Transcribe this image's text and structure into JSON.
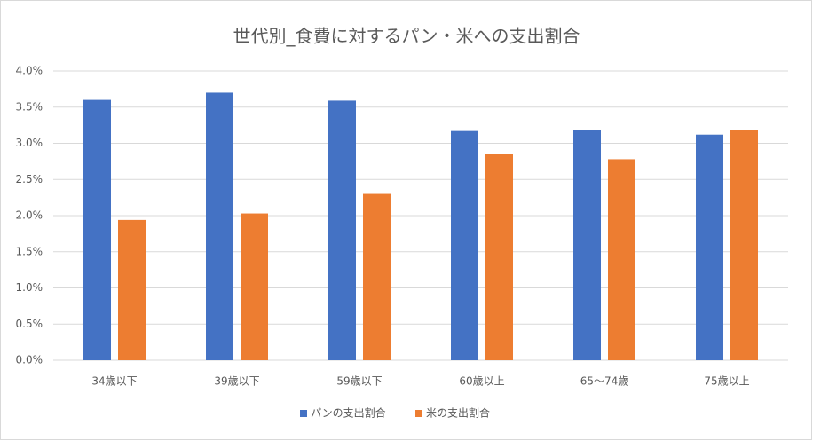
{
  "chart_data": {
    "type": "bar",
    "title": "世代別_食費に対するパン・米への支出割合",
    "categories": [
      "34歳以下",
      "39歳以下",
      "59歳以下",
      "60歳以上",
      "65〜74歳",
      "75歳以上"
    ],
    "series": [
      {
        "name": "パンの支出割合",
        "color": "#4472c4",
        "values": [
          3.6,
          3.7,
          3.59,
          3.17,
          3.18,
          3.12
        ]
      },
      {
        "name": "米の支出割合",
        "color": "#ed7d31",
        "values": [
          1.94,
          2.03,
          2.3,
          2.85,
          2.78,
          3.19
        ]
      }
    ],
    "ylim": [
      0,
      4
    ],
    "yticks": [
      {
        "value": 0,
        "label": "0.0%"
      },
      {
        "value": 0.5,
        "label": "0.5%"
      },
      {
        "value": 1,
        "label": "1.0%"
      },
      {
        "value": 1.5,
        "label": "1.5%"
      },
      {
        "value": 2,
        "label": "2.0%"
      },
      {
        "value": 2.5,
        "label": "2.5%"
      },
      {
        "value": 3,
        "label": "3.0%"
      },
      {
        "value": 3.5,
        "label": "3.5%"
      },
      {
        "value": 4,
        "label": "4.0%"
      }
    ],
    "grid": true,
    "legend": "bottom"
  }
}
